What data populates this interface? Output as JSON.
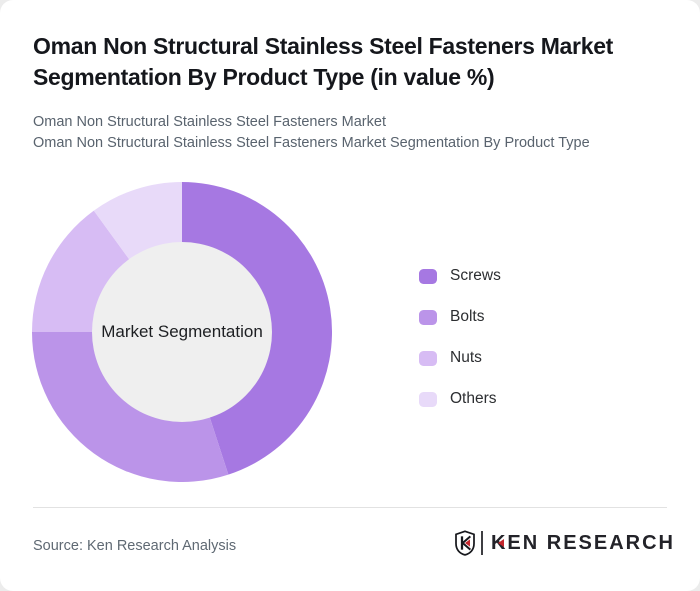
{
  "header": {
    "title_line1": "Oman Non Structural Stainless Steel Fasteners Market",
    "title_line2": "Segmentation By Product Type (in value %)",
    "subtitle_line1": "Oman Non Structural Stainless Steel Fasteners Market",
    "subtitle_line2": "Oman Non Structural Stainless Steel Fasteners Market Segmentation By Product Type"
  },
  "chart_data": {
    "type": "pie",
    "donut": true,
    "title": "Oman Non Structural Stainless Steel Fasteners Market Segmentation By Product Type (in value %)",
    "categories": [
      "Screws",
      "Bolts",
      "Nuts",
      "Others"
    ],
    "values": [
      45,
      30,
      15,
      10
    ],
    "unit": "value %",
    "colors": [
      "#a678e2",
      "#bb94e9",
      "#d7bcf4",
      "#e8daf9"
    ],
    "center_label": "Market Segmentation",
    "center_fill": "#efefef",
    "start_angle_deg": 0,
    "direction": "clockwise",
    "legend_position": "right",
    "annotations": []
  },
  "footer": {
    "source": "Source: Ken Research Analysis",
    "brand": "KEN RESEARCH",
    "brand_accent_color": "#c3262c"
  }
}
